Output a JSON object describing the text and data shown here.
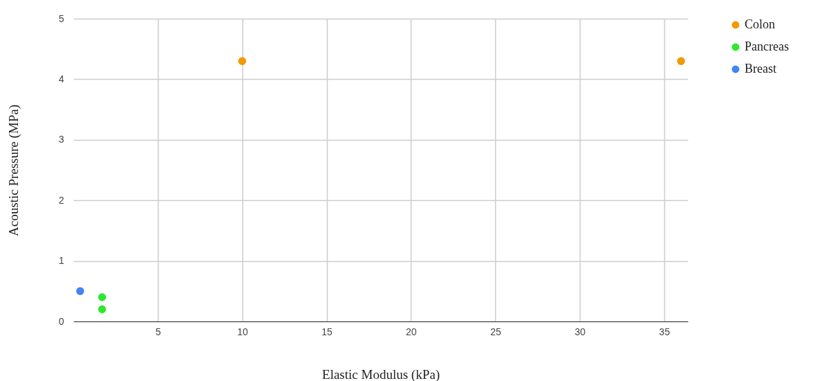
{
  "chart_data": {
    "type": "scatter",
    "xlabel": "Elastic Modulus (kPa)",
    "ylabel": "Acoustic Pressure (MPa)",
    "xlim": [
      0,
      36.4
    ],
    "xticks": [
      5,
      10,
      15,
      20,
      25,
      30,
      35
    ],
    "ylim": [
      0,
      5
    ],
    "yticks": [
      0,
      1,
      2,
      3,
      4,
      5
    ],
    "grid": true,
    "legend": "right",
    "marker": "circle",
    "series": [
      {
        "name": "Colon",
        "color": "#f29900",
        "x": [
          10,
          36
        ],
        "values": [
          4.3,
          4.3
        ]
      },
      {
        "name": "Pancreas",
        "color": "#2ee82e",
        "x": [
          1.7,
          1.7
        ],
        "values": [
          0.4,
          0.2
        ]
      },
      {
        "name": "Breast",
        "color": "#4285f4",
        "x": [
          0.4
        ],
        "values": [
          0.5
        ]
      }
    ]
  }
}
